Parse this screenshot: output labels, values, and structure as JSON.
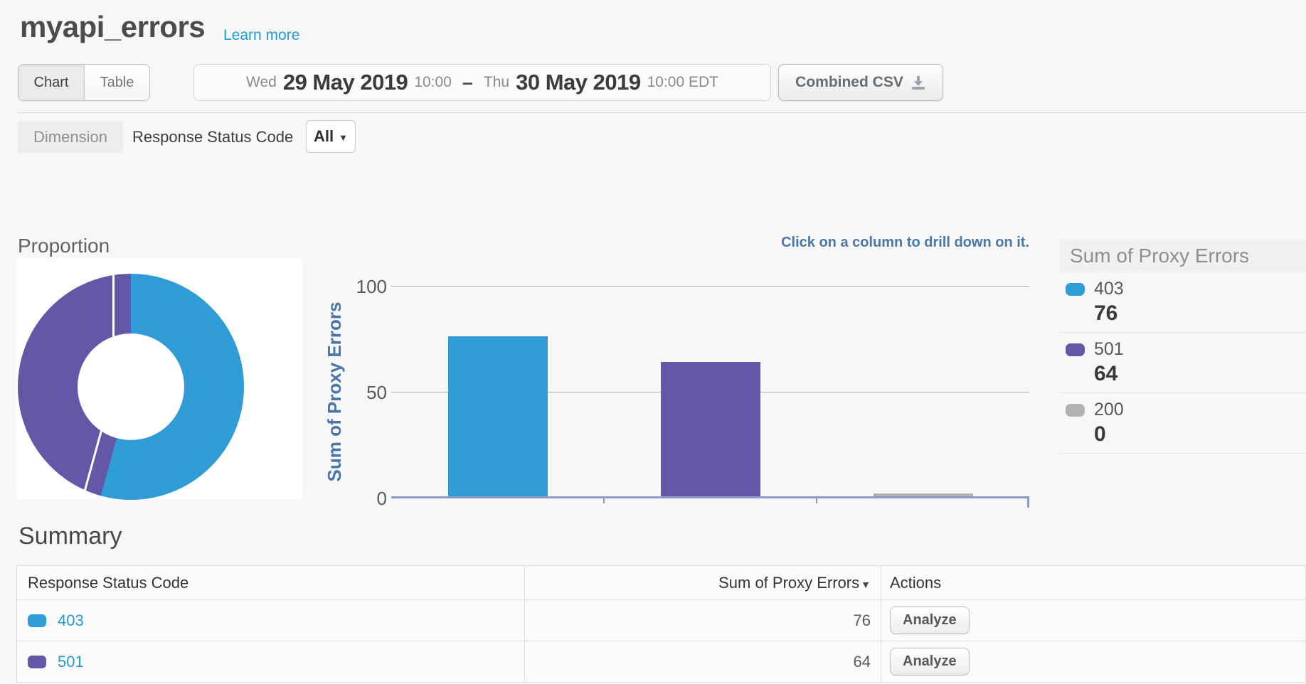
{
  "header": {
    "title": "myapi_errors",
    "learn_more": "Learn more"
  },
  "toolbar": {
    "chart_tab": "Chart",
    "table_tab": "Table",
    "date_range": {
      "start_day": "Wed",
      "start_date": "29 May 2019",
      "start_time": "10:00",
      "separator": "–",
      "end_day": "Thu",
      "end_date": "30 May 2019",
      "end_time": "10:00 EDT"
    },
    "csv_button": "Combined CSV"
  },
  "dimension": {
    "label": "Dimension",
    "name": "Response Status Code",
    "filter_value": "All"
  },
  "proportion_title": "Proportion",
  "chart_data": [
    {
      "type": "pie",
      "title": "Proportion",
      "labels": [
        "403",
        "501"
      ],
      "values": [
        76,
        64
      ],
      "colors": [
        "#2f9cd7",
        "#6358a8"
      ],
      "donut": true
    },
    {
      "type": "bar",
      "categories": [
        "403",
        "501",
        "200"
      ],
      "values": [
        76,
        64,
        0
      ],
      "colors": [
        "#2f9cd7",
        "#6358a8",
        "#b2b2b2"
      ],
      "ylabel": "Sum of Proxy Errors",
      "xlabel": "",
      "ylim": [
        0,
        100
      ],
      "yticks": [
        0,
        50,
        100
      ],
      "grid": true,
      "legend_position": "right",
      "annotation": "Click on a column to drill down on it."
    }
  ],
  "legend": {
    "title": "Sum of Proxy Errors",
    "items": [
      {
        "label": "403",
        "value": "76",
        "color": "#2f9cd7"
      },
      {
        "label": "501",
        "value": "64",
        "color": "#6358a8"
      },
      {
        "label": "200",
        "value": "0",
        "color": "#b2b2b2"
      }
    ]
  },
  "summary": {
    "title": "Summary",
    "columns": [
      "Response Status Code",
      "Sum of Proxy Errors",
      "Actions"
    ],
    "rows": [
      {
        "code": "403",
        "color": "#2f9cd7",
        "value": "76",
        "action": "Analyze"
      },
      {
        "code": "501",
        "color": "#6358a8",
        "value": "64",
        "action": "Analyze"
      }
    ]
  }
}
